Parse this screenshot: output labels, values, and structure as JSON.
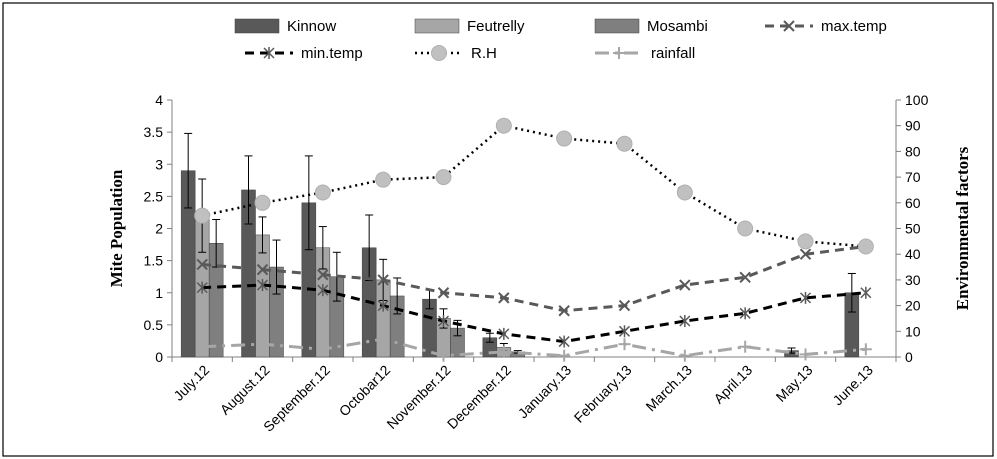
{
  "chart_data": {
    "type": "bar",
    "categories": [
      "July.12",
      "August.12",
      "September.12",
      "Octobar12",
      "November.12",
      "December.12",
      "January.13",
      "February.13",
      "March.13",
      "April.13",
      "May.13",
      "June.13"
    ],
    "ylabel": "Mite Population",
    "y2label": "Environmental factors",
    "ylim": [
      0,
      4
    ],
    "y2lim": [
      0,
      100
    ],
    "yticks": [
      "0",
      "0.5",
      "1",
      "1.5",
      "2",
      "2.5",
      "3",
      "3.5",
      "4"
    ],
    "y2ticks": [
      "0",
      "10",
      "20",
      "30",
      "40",
      "50",
      "60",
      "70",
      "80",
      "90",
      "100"
    ],
    "grid": false,
    "legend_position": "top",
    "bar_series": [
      {
        "name": "Kinnow",
        "color": "#595959",
        "values": [
          2.9,
          2.6,
          2.4,
          1.7,
          0.9,
          0.3,
          0,
          0,
          0,
          0,
          0.1,
          1.0
        ],
        "errors": [
          0.58,
          0.53,
          0.73,
          0.51,
          0.15,
          0.07,
          0,
          0,
          0,
          0,
          0.04,
          0.3
        ]
      },
      {
        "name": "Feutrelly",
        "color": "#a6a6a6",
        "values": [
          2.2,
          1.9,
          1.7,
          1.2,
          0.6,
          0.15,
          0,
          0,
          0,
          0,
          0,
          0
        ],
        "errors": [
          0.57,
          0.28,
          0.33,
          0.32,
          0.15,
          0.06,
          0,
          0,
          0,
          0,
          0,
          0
        ]
      },
      {
        "name": "Mosambi",
        "color": "#7f7f7f",
        "values": [
          1.77,
          1.4,
          1.25,
          0.95,
          0.45,
          0.08,
          0,
          0,
          0,
          0,
          0,
          0
        ],
        "errors": [
          0.37,
          0.42,
          0.38,
          0.28,
          0.12,
          0.02,
          0,
          0,
          0,
          0,
          0,
          0
        ]
      }
    ],
    "line_series": [
      {
        "name": "max.temp",
        "color": "#595959",
        "dash": "dashed",
        "marker": "x",
        "values": [
          36,
          34,
          32,
          30,
          25,
          23,
          18,
          20,
          28,
          31,
          40,
          43
        ]
      },
      {
        "name": "min.temp",
        "color": "#000000",
        "dash": "dashed",
        "marker": "asterisk",
        "values": [
          27,
          28,
          26,
          20,
          14,
          9,
          6,
          10,
          14,
          17,
          23,
          25
        ]
      },
      {
        "name": "R.H",
        "color": "#000000",
        "dash": "dotted",
        "marker": "circle",
        "values": [
          55,
          60,
          64,
          69,
          70,
          90,
          85,
          83,
          64,
          50,
          45,
          43
        ]
      },
      {
        "name": "rainfall",
        "color": "#a6a6a6",
        "dash": "dashdot",
        "marker": "plus",
        "values": [
          4,
          5,
          3,
          7,
          0.5,
          2,
          0.5,
          5,
          0.5,
          4,
          1,
          3
        ]
      }
    ],
    "legend": [
      {
        "name": "Kinnow",
        "kind": "bar",
        "series": 0
      },
      {
        "name": "Feutrelly",
        "kind": "bar",
        "series": 1
      },
      {
        "name": "Mosambi",
        "kind": "bar",
        "series": 2
      },
      {
        "name": "max.temp",
        "kind": "line",
        "series": 0
      },
      {
        "name": "min.temp",
        "kind": "line",
        "series": 1
      },
      {
        "name": "R.H",
        "kind": "line",
        "series": 2
      },
      {
        "name": "rainfall",
        "kind": "line",
        "series": 3
      }
    ]
  }
}
